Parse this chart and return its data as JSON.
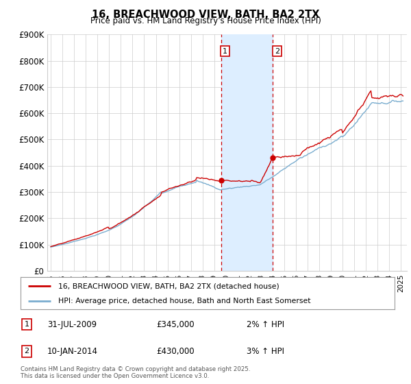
{
  "title": "16, BREACHWOOD VIEW, BATH, BA2 2TX",
  "subtitle": "Price paid vs. HM Land Registry's House Price Index (HPI)",
  "legend_line1": "16, BREACHWOOD VIEW, BATH, BA2 2TX (detached house)",
  "legend_line2": "HPI: Average price, detached house, Bath and North East Somerset",
  "footer": "Contains HM Land Registry data © Crown copyright and database right 2025.\nThis data is licensed under the Open Government Licence v3.0.",
  "transaction1_date": "31-JUL-2009",
  "transaction1_price": "£345,000",
  "transaction1_hpi": "2% ↑ HPI",
  "transaction2_date": "10-JAN-2014",
  "transaction2_price": "£430,000",
  "transaction2_hpi": "3% ↑ HPI",
  "ymin": 0,
  "ymax": 900000,
  "yticks": [
    0,
    100000,
    200000,
    300000,
    400000,
    500000,
    600000,
    700000,
    800000,
    900000
  ],
  "ytick_labels": [
    "£0",
    "£100K",
    "£200K",
    "£300K",
    "£400K",
    "£500K",
    "£600K",
    "£700K",
    "£800K",
    "£900K"
  ],
  "red_color": "#cc0000",
  "blue_color": "#7aadcf",
  "shade_color": "#ddeeff",
  "grid_color": "#cccccc",
  "background_color": "#ffffff",
  "transaction1_x": 2009.58,
  "transaction2_x": 2014.03,
  "xmin": 1994.7,
  "xmax": 2025.5,
  "xtick_years": [
    1995,
    1996,
    1997,
    1998,
    1999,
    2000,
    2001,
    2002,
    2003,
    2004,
    2005,
    2006,
    2007,
    2008,
    2009,
    2010,
    2011,
    2012,
    2013,
    2014,
    2015,
    2016,
    2017,
    2018,
    2019,
    2020,
    2021,
    2022,
    2023,
    2024,
    2025
  ]
}
